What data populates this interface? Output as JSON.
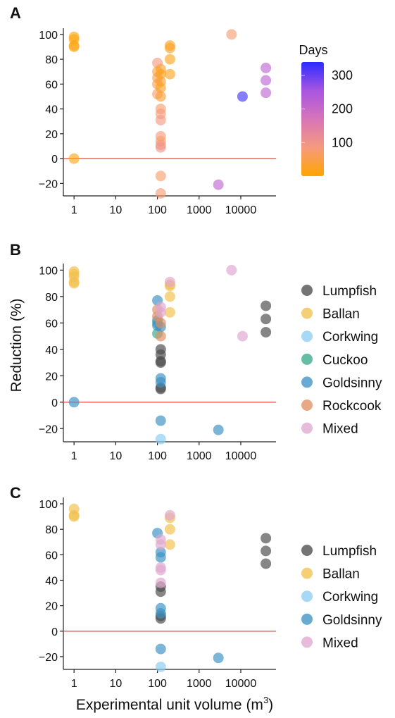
{
  "figure": {
    "ylabel": "Reduction (%)",
    "xlabel_main": "Experimental unit volume (m",
    "xlabel_sup": "3",
    "xlabel_end": ")"
  },
  "chart_data": [
    {
      "panel": "A",
      "type": "scatter",
      "x_scale": "log",
      "xlim": [
        0.7,
        70000
      ],
      "ylim": [
        -30,
        105
      ],
      "x_ticks": [
        "1",
        "10",
        "100",
        "1000",
        "10000"
      ],
      "y_ticks": [
        "−20",
        "0",
        "20",
        "40",
        "60",
        "80",
        "100"
      ],
      "reference_line_y": 0,
      "reference_color": "#e8574a",
      "colorbar": {
        "title": "Days",
        "ticks": [
          "100",
          "200",
          "300"
        ],
        "range": [
          0,
          340
        ],
        "colors": [
          "#ffa500",
          "#f59a7e",
          "#d775b8",
          "#a855e2",
          "#2b2bff"
        ]
      },
      "points": [
        {
          "x": 1,
          "y": 98,
          "days": 8
        },
        {
          "x": 1,
          "y": 96,
          "days": 10
        },
        {
          "x": 1,
          "y": 91,
          "days": 12
        },
        {
          "x": 1,
          "y": 90,
          "days": 10
        },
        {
          "x": 1,
          "y": 0,
          "days": 10
        },
        {
          "x": 100,
          "y": 77,
          "days": 90
        },
        {
          "x": 100,
          "y": 70,
          "days": 40
        },
        {
          "x": 100,
          "y": 65,
          "days": 60
        },
        {
          "x": 100,
          "y": 60,
          "days": 50
        },
        {
          "x": 100,
          "y": 52,
          "days": 70
        },
        {
          "x": 120,
          "y": 72,
          "days": 30
        },
        {
          "x": 120,
          "y": 68,
          "days": 20
        },
        {
          "x": 120,
          "y": 62,
          "days": 30
        },
        {
          "x": 120,
          "y": 57,
          "days": 25
        },
        {
          "x": 120,
          "y": 50,
          "days": 35
        },
        {
          "x": 120,
          "y": 40,
          "days": 70
        },
        {
          "x": 120,
          "y": 36,
          "days": 80
        },
        {
          "x": 120,
          "y": 31,
          "days": 90
        },
        {
          "x": 120,
          "y": 18,
          "days": 80
        },
        {
          "x": 120,
          "y": 14,
          "days": 70
        },
        {
          "x": 120,
          "y": 11,
          "days": 90
        },
        {
          "x": 120,
          "y": 9,
          "days": 100
        },
        {
          "x": 120,
          "y": -14,
          "days": 70
        },
        {
          "x": 120,
          "y": -28,
          "days": 75
        },
        {
          "x": 200,
          "y": 91,
          "days": 20
        },
        {
          "x": 200,
          "y": 89,
          "days": 25
        },
        {
          "x": 200,
          "y": 80,
          "days": 15
        },
        {
          "x": 200,
          "y": 68,
          "days": 20
        },
        {
          "x": 2900,
          "y": -21,
          "days": 220
        },
        {
          "x": 6000,
          "y": 100,
          "days": 75
        },
        {
          "x": 11000,
          "y": 50,
          "days": 330
        },
        {
          "x": 40000,
          "y": 73,
          "days": 220
        },
        {
          "x": 40000,
          "y": 63,
          "days": 220
        },
        {
          "x": 40000,
          "y": 53,
          "days": 220
        }
      ]
    },
    {
      "panel": "B",
      "type": "scatter",
      "x_scale": "log",
      "xlim": [
        0.7,
        70000
      ],
      "ylim": [
        -30,
        105
      ],
      "x_ticks": [
        "1",
        "10",
        "100",
        "1000",
        "10000"
      ],
      "y_ticks": [
        "−20",
        "0",
        "20",
        "40",
        "60",
        "80",
        "100"
      ],
      "reference_line_y": 0,
      "reference_color": "#e8574a",
      "series": [
        {
          "name": "Lumpfish",
          "color": "#4d4d4d",
          "points": [
            [
              120,
              40
            ],
            [
              120,
              36
            ],
            [
              120,
              31
            ],
            [
              120,
              30
            ],
            [
              120,
              11
            ],
            [
              120,
              10
            ],
            [
              40000,
              73
            ],
            [
              40000,
              63
            ],
            [
              40000,
              53
            ]
          ]
        },
        {
          "name": "Ballan",
          "color": "#f2c14e",
          "points": [
            [
              1,
              99
            ],
            [
              1,
              97
            ],
            [
              1,
              95
            ],
            [
              1,
              91
            ],
            [
              1,
              90
            ],
            [
              200,
              89
            ],
            [
              200,
              80
            ],
            [
              200,
              68
            ],
            [
              200,
              88
            ]
          ]
        },
        {
          "name": "Corkwing",
          "color": "#8ecdf2",
          "points": [
            [
              120,
              -28
            ]
          ]
        },
        {
          "name": "Cuckoo",
          "color": "#3aab8c",
          "points": [
            [
              100,
              52
            ],
            [
              100,
              60
            ]
          ]
        },
        {
          "name": "Goldsinny",
          "color": "#3d92c4",
          "points": [
            [
              1,
              0
            ],
            [
              100,
              77
            ],
            [
              100,
              62
            ],
            [
              100,
              58
            ],
            [
              120,
              57
            ],
            [
              120,
              18
            ],
            [
              120,
              15
            ],
            [
              120,
              -14
            ],
            [
              2900,
              -21
            ]
          ]
        },
        {
          "name": "Rockcook",
          "color": "#e09063",
          "points": [
            [
              100,
              70
            ],
            [
              100,
              65
            ],
            [
              120,
              60
            ],
            [
              120,
              50
            ]
          ]
        },
        {
          "name": "Mixed",
          "color": "#e0a8cf",
          "points": [
            [
              120,
              72
            ],
            [
              120,
              68
            ],
            [
              200,
              91
            ],
            [
              6000,
              100
            ],
            [
              11000,
              50
            ]
          ]
        }
      ]
    },
    {
      "panel": "C",
      "type": "scatter",
      "x_scale": "log",
      "xlim": [
        0.7,
        70000
      ],
      "ylim": [
        -30,
        105
      ],
      "x_ticks": [
        "1",
        "10",
        "100",
        "1000",
        "10000"
      ],
      "y_ticks": [
        "−20",
        "0",
        "20",
        "40",
        "60",
        "80",
        "100"
      ],
      "reference_line_y": 0,
      "reference_color": "#e8574a",
      "series": [
        {
          "name": "Lumpfish",
          "color": "#4d4d4d",
          "points": [
            [
              120,
              35
            ],
            [
              120,
              31
            ],
            [
              120,
              12
            ],
            [
              120,
              10
            ],
            [
              40000,
              73
            ],
            [
              40000,
              63
            ],
            [
              40000,
              53
            ]
          ]
        },
        {
          "name": "Ballan",
          "color": "#f2c14e",
          "points": [
            [
              1,
              96
            ],
            [
              1,
              91
            ],
            [
              1,
              90
            ],
            [
              200,
              89
            ],
            [
              200,
              80
            ],
            [
              200,
              68
            ]
          ]
        },
        {
          "name": "Corkwing",
          "color": "#8ecdf2",
          "points": [
            [
              120,
              -28
            ]
          ]
        },
        {
          "name": "Goldsinny",
          "color": "#3d92c4",
          "points": [
            [
              100,
              77
            ],
            [
              120,
              62
            ],
            [
              120,
              58
            ],
            [
              120,
              18
            ],
            [
              120,
              14
            ],
            [
              120,
              -14
            ],
            [
              2900,
              -21
            ]
          ]
        },
        {
          "name": "Mixed",
          "color": "#e0a8cf",
          "points": [
            [
              120,
              72
            ],
            [
              120,
              68
            ],
            [
              120,
              50
            ],
            [
              120,
              48
            ],
            [
              120,
              38
            ],
            [
              200,
              91
            ]
          ]
        }
      ]
    }
  ]
}
